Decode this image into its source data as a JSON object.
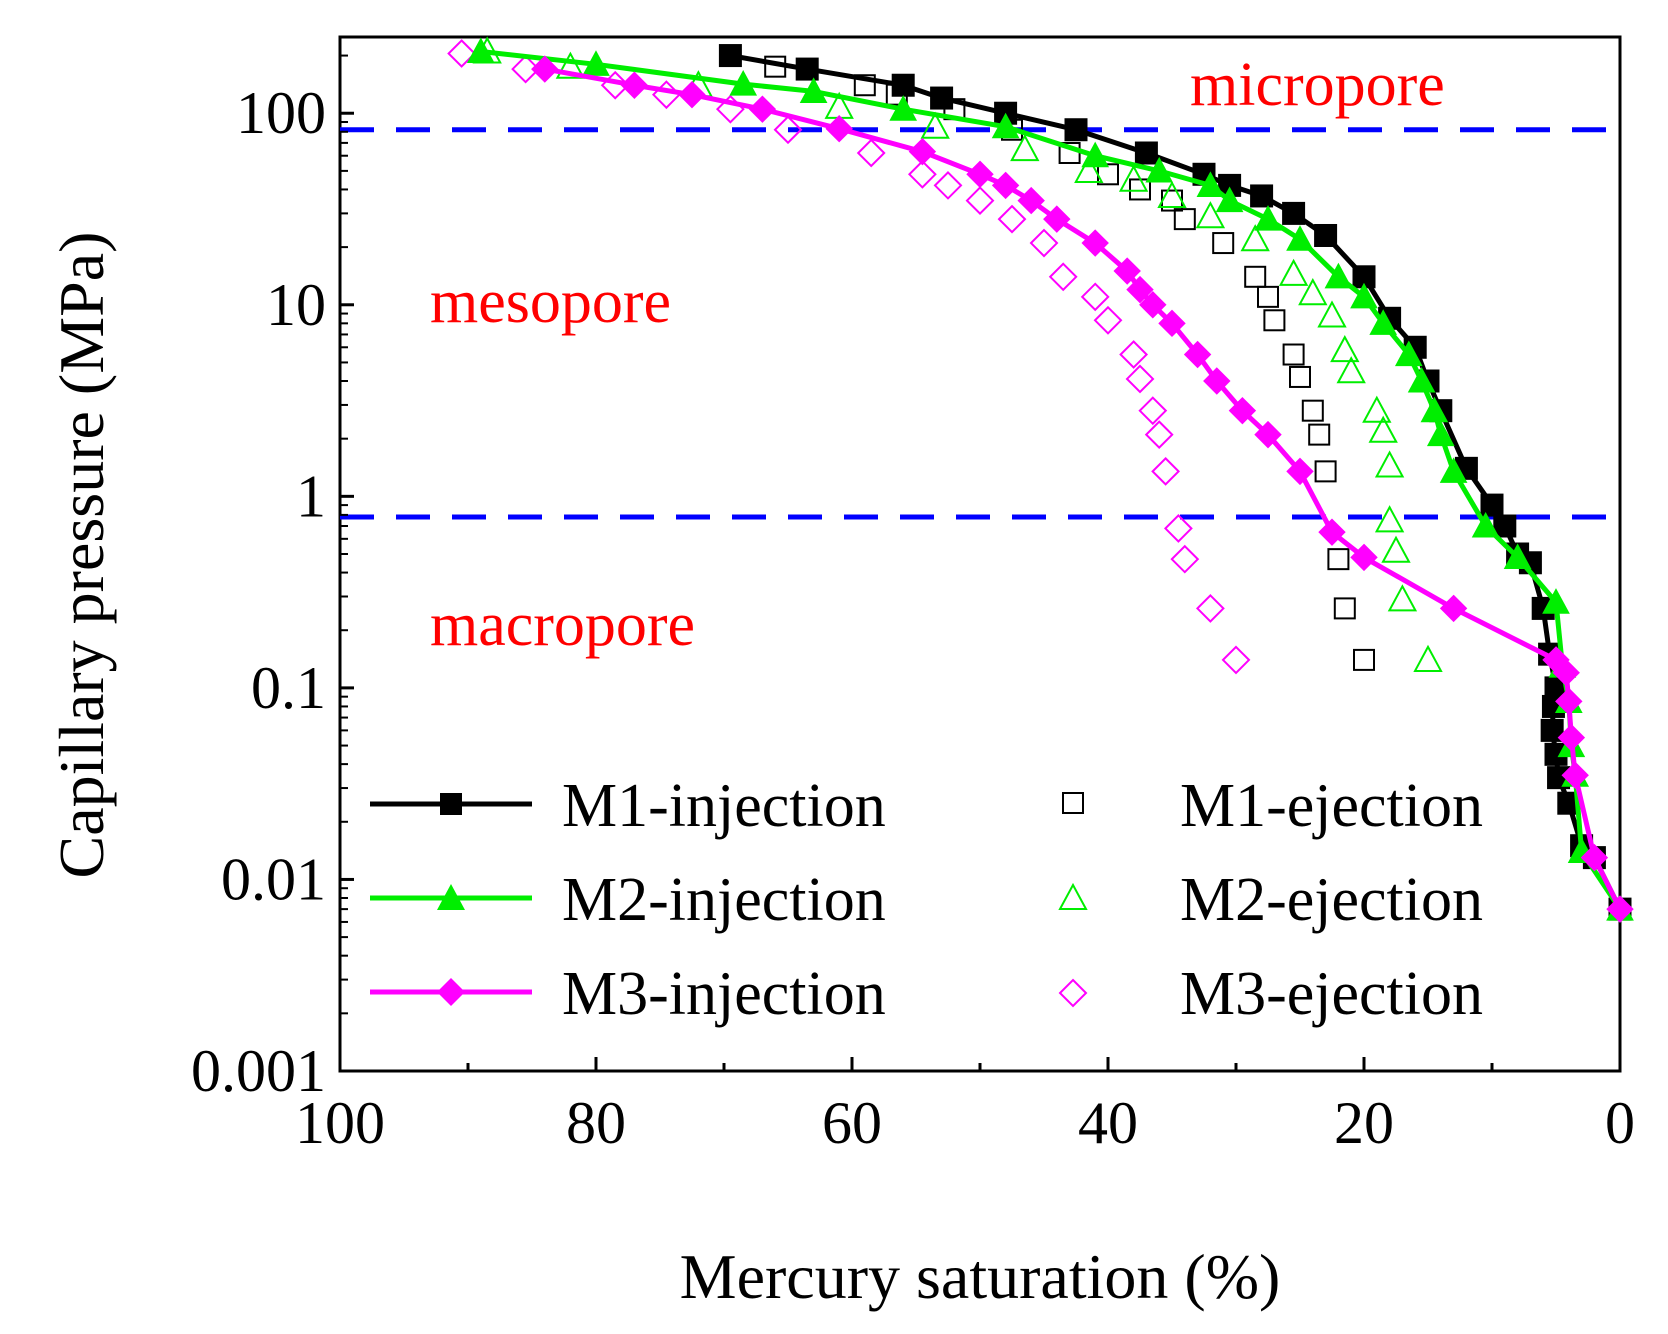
{
  "chart_data": {
    "type": "scatter",
    "title": "",
    "xlabel": "Mercury saturation (%)",
    "ylabel": "Capillary pressure (MPa)",
    "xlim": [
      100,
      0
    ],
    "ylim": [
      0.001,
      250
    ],
    "yscale": "log",
    "x_ticks": [
      100,
      80,
      60,
      40,
      20,
      0
    ],
    "x_tick_labels": [
      "100",
      "80",
      "60",
      "40",
      "20",
      "0"
    ],
    "y_ticks": [
      0.001,
      0.01,
      0.1,
      1,
      10,
      100
    ],
    "y_tick_labels": [
      "0.001",
      "0.01",
      "0.1",
      "1",
      "10",
      "100"
    ],
    "thresholds": [
      {
        "name": "micropore-boundary",
        "y": 82,
        "color": "#0000ff"
      },
      {
        "name": "macropore-boundary",
        "y": 0.78,
        "color": "#0000ff"
      }
    ],
    "regions": [
      {
        "name": "micropore",
        "label": "micropore",
        "color": "#ff0000"
      },
      {
        "name": "mesopore",
        "label": "mesopore",
        "color": "#ff0000"
      },
      {
        "name": "macropore",
        "label": "macropore",
        "color": "#ff0000"
      }
    ],
    "series": [
      {
        "name": "M1-injection",
        "color": "#000000",
        "marker": "square",
        "filled": true,
        "line": true,
        "points": [
          [
            69.5,
            200
          ],
          [
            63.5,
            170
          ],
          [
            56,
            140
          ],
          [
            53,
            120
          ],
          [
            48,
            100
          ],
          [
            42.5,
            82
          ],
          [
            37,
            62
          ],
          [
            32.5,
            48
          ],
          [
            30.5,
            42
          ],
          [
            28,
            37
          ],
          [
            25.5,
            30
          ],
          [
            23,
            23
          ],
          [
            20,
            14
          ],
          [
            18,
            8.5
          ],
          [
            16,
            6
          ],
          [
            15,
            4
          ],
          [
            14,
            2.8
          ],
          [
            12,
            1.4
          ],
          [
            10,
            0.9
          ],
          [
            9,
            0.7
          ],
          [
            8,
            0.5
          ],
          [
            7,
            0.45
          ],
          [
            6,
            0.26
          ],
          [
            5.5,
            0.15
          ],
          [
            5,
            0.1
          ],
          [
            5.2,
            0.08
          ],
          [
            5.3,
            0.06
          ],
          [
            5,
            0.045
          ],
          [
            4.8,
            0.034
          ],
          [
            4,
            0.025
          ],
          [
            3,
            0.015
          ],
          [
            2,
            0.013
          ],
          [
            0,
            0.007
          ]
        ]
      },
      {
        "name": "M2-injection",
        "color": "#00ee00",
        "marker": "triangle",
        "filled": true,
        "line": true,
        "points": [
          [
            89,
            210
          ],
          [
            80,
            180
          ],
          [
            68.5,
            142
          ],
          [
            63,
            130
          ],
          [
            56,
            105
          ],
          [
            48,
            85
          ],
          [
            41,
            60
          ],
          [
            36,
            50
          ],
          [
            32,
            42
          ],
          [
            30.5,
            35
          ],
          [
            27.5,
            28
          ],
          [
            25,
            22
          ],
          [
            22,
            14
          ],
          [
            20,
            11
          ],
          [
            18.5,
            8
          ],
          [
            16.5,
            5.5
          ],
          [
            15.5,
            4
          ],
          [
            14.5,
            2.8
          ],
          [
            14,
            2.1
          ],
          [
            13,
            1.35
          ],
          [
            10.5,
            0.7
          ],
          [
            8,
            0.48
          ],
          [
            5,
            0.28
          ],
          [
            4.5,
            0.13
          ],
          [
            4,
            0.085
          ],
          [
            3.8,
            0.05
          ],
          [
            3.5,
            0.035
          ],
          [
            3,
            0.014
          ],
          [
            0,
            0.007
          ]
        ]
      },
      {
        "name": "M3-injection",
        "color": "#ff00ff",
        "marker": "diamond",
        "filled": true,
        "line": true,
        "points": [
          [
            84,
            170
          ],
          [
            77,
            140
          ],
          [
            72.5,
            125
          ],
          [
            67,
            105
          ],
          [
            61,
            83
          ],
          [
            54.5,
            63
          ],
          [
            50,
            48
          ],
          [
            48,
            42
          ],
          [
            46,
            35
          ],
          [
            44,
            28
          ],
          [
            41,
            21
          ],
          [
            38.5,
            15
          ],
          [
            37.5,
            12
          ],
          [
            36.5,
            10
          ],
          [
            35,
            8
          ],
          [
            33,
            5.5
          ],
          [
            31.5,
            4
          ],
          [
            29.5,
            2.8
          ],
          [
            27.5,
            2.1
          ],
          [
            25,
            1.35
          ],
          [
            22.5,
            0.65
          ],
          [
            20,
            0.48
          ],
          [
            13,
            0.26
          ],
          [
            5,
            0.14
          ],
          [
            4.2,
            0.12
          ],
          [
            4,
            0.085
          ],
          [
            3.8,
            0.055
          ],
          [
            3.5,
            0.035
          ],
          [
            2,
            0.013
          ],
          [
            0,
            0.007
          ]
        ]
      },
      {
        "name": "M1-ejection",
        "color": "#000000",
        "marker": "square",
        "filled": false,
        "line": false,
        "points": [
          [
            69.5,
            200
          ],
          [
            66,
            175
          ],
          [
            59,
            140
          ],
          [
            56.5,
            125
          ],
          [
            52,
            105
          ],
          [
            47.5,
            82
          ],
          [
            43,
            62
          ],
          [
            40,
            48
          ],
          [
            37.5,
            40
          ],
          [
            35,
            35
          ],
          [
            34,
            28
          ],
          [
            31,
            21
          ],
          [
            28.5,
            14
          ],
          [
            27.5,
            11
          ],
          [
            27,
            8.3
          ],
          [
            25.5,
            5.5
          ],
          [
            25,
            4.2
          ],
          [
            24,
            2.8
          ],
          [
            23.5,
            2.1
          ],
          [
            23,
            1.35
          ],
          [
            22,
            0.47
          ],
          [
            21.5,
            0.26
          ],
          [
            20,
            0.14
          ]
        ]
      },
      {
        "name": "M2-ejection",
        "color": "#00ee00",
        "marker": "triangle",
        "filled": false,
        "line": false,
        "points": [
          [
            88.5,
            210
          ],
          [
            82,
            175
          ],
          [
            72,
            140
          ],
          [
            61,
            108
          ],
          [
            53.5,
            85
          ],
          [
            46.5,
            65
          ],
          [
            41.5,
            50
          ],
          [
            38,
            45
          ],
          [
            35,
            37
          ],
          [
            32,
            29
          ],
          [
            28.5,
            22
          ],
          [
            25.5,
            14.5
          ],
          [
            24,
            11.5
          ],
          [
            22.5,
            8.8
          ],
          [
            21.5,
            5.8
          ],
          [
            21,
            4.5
          ],
          [
            19,
            2.8
          ],
          [
            18.5,
            2.2
          ],
          [
            18,
            1.45
          ],
          [
            18,
            0.75
          ],
          [
            17.5,
            0.52
          ],
          [
            17,
            0.29
          ],
          [
            15,
            0.14
          ]
        ]
      },
      {
        "name": "M3-ejection",
        "color": "#ff00ff",
        "marker": "diamond",
        "filled": false,
        "line": false,
        "points": [
          [
            90.5,
            205
          ],
          [
            85.5,
            170
          ],
          [
            78.5,
            140
          ],
          [
            74.5,
            125
          ],
          [
            69.5,
            105
          ],
          [
            65,
            82
          ],
          [
            58.5,
            62
          ],
          [
            54.5,
            48
          ],
          [
            52.5,
            42
          ],
          [
            50,
            35
          ],
          [
            47.5,
            28
          ],
          [
            45,
            21
          ],
          [
            43.5,
            14
          ],
          [
            41,
            11
          ],
          [
            40,
            8.3
          ],
          [
            38,
            5.5
          ],
          [
            37.5,
            4.1
          ],
          [
            36.5,
            2.8
          ],
          [
            36,
            2.1
          ],
          [
            35.5,
            1.35
          ],
          [
            34.5,
            0.68
          ],
          [
            34,
            0.47
          ],
          [
            32,
            0.26
          ],
          [
            30,
            0.14
          ]
        ]
      }
    ]
  }
}
